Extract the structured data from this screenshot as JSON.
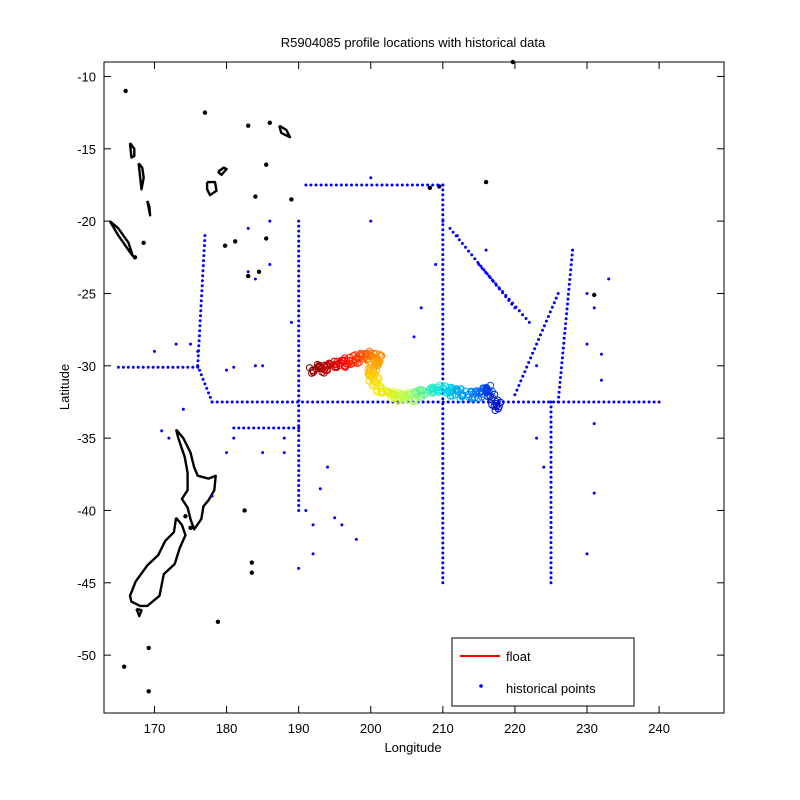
{
  "chart_data": {
    "type": "scatter",
    "title": "R5904085 profile locations with historical data",
    "xlabel": "Longitude",
    "ylabel": "Latitude",
    "xlim": [
      163,
      249
    ],
    "ylim": [
      -54,
      -9
    ],
    "xticks": [
      170,
      180,
      190,
      200,
      210,
      220,
      230,
      240
    ],
    "yticks": [
      -10,
      -15,
      -20,
      -25,
      -30,
      -35,
      -40,
      -45,
      -50
    ],
    "grid": false,
    "legend_position": "bottom-right",
    "legend": [
      {
        "label": "float",
        "color": "#ff0000",
        "marker": "line"
      },
      {
        "label": "historical points",
        "color": "#0000ff",
        "marker": "dot"
      }
    ],
    "colors": {
      "historical": "#0000ff",
      "coastline": "#000000",
      "float_line": "#ff0000"
    },
    "float_track": [
      [
        192,
        -30.3
      ],
      [
        194,
        -30.1
      ],
      [
        196,
        -29.8
      ],
      [
        198,
        -29.6
      ],
      [
        200,
        -29.3
      ],
      [
        201,
        -29.2
      ],
      [
        200,
        -30.6
      ],
      [
        201,
        -31.5
      ],
      [
        203,
        -32.0
      ],
      [
        205,
        -32.3
      ],
      [
        207,
        -31.9
      ],
      [
        209,
        -31.6
      ],
      [
        211,
        -31.7
      ],
      [
        213,
        -32.0
      ],
      [
        214,
        -32.1
      ],
      [
        216,
        -31.6
      ],
      [
        217,
        -32.2
      ],
      [
        217.5,
        -33.0
      ]
    ],
    "historical_lines": [
      {
        "from": [
          191,
          -17.5
        ],
        "to": [
          210,
          -17.5
        ]
      },
      {
        "from": [
          210,
          -17.5
        ],
        "to": [
          210,
          -45
        ]
      },
      {
        "from": [
          190,
          -20
        ],
        "to": [
          190,
          -40
        ]
      },
      {
        "from": [
          178,
          -32.5
        ],
        "to": [
          240,
          -32.5
        ]
      },
      {
        "from": [
          165,
          -30.1
        ],
        "to": [
          176,
          -30.1
        ]
      },
      {
        "from": [
          176,
          -30
        ],
        "to": [
          178,
          -32.5
        ]
      },
      {
        "from": [
          177,
          -21
        ],
        "to": [
          176,
          -30
        ]
      },
      {
        "from": [
          225,
          -32.5
        ],
        "to": [
          225,
          -45
        ]
      },
      {
        "from": [
          228,
          -22
        ],
        "to": [
          226,
          -32.5
        ]
      },
      {
        "from": [
          181,
          -34.3
        ],
        "to": [
          190,
          -34.3
        ]
      },
      {
        "from": [
          211,
          -20.5
        ],
        "to": [
          220,
          -26
        ]
      },
      {
        "from": [
          226,
          -25
        ],
        "to": [
          220,
          -32
        ]
      },
      {
        "from": [
          215,
          -23
        ],
        "to": [
          222,
          -27
        ]
      }
    ],
    "historical_scattered": [
      [
        173,
        -28.5
      ],
      [
        175,
        -28.5
      ],
      [
        176,
        -29
      ],
      [
        180,
        -30.3
      ],
      [
        181,
        -30.1
      ],
      [
        183,
        -23.5
      ],
      [
        184,
        -24
      ],
      [
        186,
        -23
      ],
      [
        183,
        -20.5
      ],
      [
        186,
        -20
      ],
      [
        189,
        -27
      ],
      [
        191,
        -40
      ],
      [
        192,
        -41
      ],
      [
        190,
        -44
      ],
      [
        192,
        -43
      ],
      [
        196,
        -41
      ],
      [
        198,
        -42
      ],
      [
        193,
        -38.5
      ],
      [
        194,
        -37
      ],
      [
        195,
        -40.5
      ],
      [
        209,
        -23
      ],
      [
        207,
        -26
      ],
      [
        206,
        -28
      ],
      [
        210,
        -20
      ],
      [
        200,
        -17
      ],
      [
        200,
        -20
      ],
      [
        216,
        -22
      ],
      [
        212,
        -21
      ],
      [
        230,
        -25
      ],
      [
        231,
        -26
      ],
      [
        232,
        -29.2
      ],
      [
        230,
        -28.5
      ],
      [
        233,
        -24
      ],
      [
        232,
        -31
      ],
      [
        231,
        -34
      ],
      [
        231,
        -38.8
      ],
      [
        230,
        -43
      ],
      [
        223,
        -30
      ],
      [
        223,
        -35
      ],
      [
        224,
        -37
      ],
      [
        171,
        -34.5
      ],
      [
        170,
        -29
      ],
      [
        172,
        -35
      ],
      [
        174,
        -33
      ],
      [
        178,
        -39
      ],
      [
        180,
        -36
      ],
      [
        181,
        -35
      ],
      [
        185,
        -36
      ],
      [
        188,
        -36
      ],
      [
        188,
        -35
      ],
      [
        185,
        -30
      ],
      [
        184,
        -30
      ]
    ],
    "coastlines": [
      {
        "name": "New Zealand North Island",
        "points": [
          [
            173,
            -34.4
          ],
          [
            174,
            -35
          ],
          [
            175,
            -36
          ],
          [
            175.5,
            -37
          ],
          [
            176,
            -37.6
          ],
          [
            177.5,
            -37.8
          ],
          [
            178.5,
            -37.6
          ],
          [
            178.3,
            -38.6
          ],
          [
            177.5,
            -39.3
          ],
          [
            176.8,
            -39.7
          ],
          [
            176.5,
            -40.6
          ],
          [
            175.5,
            -41.3
          ],
          [
            175,
            -40.6
          ],
          [
            174.6,
            -39.8
          ],
          [
            173.8,
            -39.2
          ],
          [
            174.6,
            -38.6
          ],
          [
            174.6,
            -37.4
          ],
          [
            174.2,
            -36.3
          ],
          [
            173.3,
            -35
          ],
          [
            173,
            -34.4
          ]
        ]
      },
      {
        "name": "New Zealand South Island",
        "points": [
          [
            173,
            -40.5
          ],
          [
            172.7,
            -41.5
          ],
          [
            171.5,
            -42.1
          ],
          [
            170.5,
            -43.1
          ],
          [
            169,
            -43.8
          ],
          [
            167.4,
            -44.9
          ],
          [
            166.6,
            -45.9
          ],
          [
            166.8,
            -46.3
          ],
          [
            168,
            -46.6
          ],
          [
            169,
            -46.6
          ],
          [
            170.7,
            -45.9
          ],
          [
            171.3,
            -44.4
          ],
          [
            172.8,
            -43.7
          ],
          [
            173.5,
            -42.6
          ],
          [
            174.3,
            -41.7
          ],
          [
            173.8,
            -41
          ],
          [
            173,
            -40.5
          ]
        ]
      },
      {
        "name": "New Caledonia",
        "points": [
          [
            163.8,
            -20
          ],
          [
            165,
            -21
          ],
          [
            166.4,
            -22
          ],
          [
            167,
            -22.4
          ],
          [
            166.4,
            -21.5
          ],
          [
            165,
            -20.5
          ],
          [
            163.8,
            -20
          ]
        ]
      },
      {
        "name": "Stewart Island",
        "points": [
          [
            167.5,
            -46.8
          ],
          [
            168.2,
            -46.9
          ],
          [
            167.9,
            -47.3
          ],
          [
            167.5,
            -46.8
          ]
        ]
      },
      {
        "name": "Fiji Viti Levu",
        "points": [
          [
            177.3,
            -17.3
          ],
          [
            178.4,
            -17.3
          ],
          [
            178.6,
            -17.9
          ],
          [
            177.7,
            -18.2
          ],
          [
            177.3,
            -17.8
          ],
          [
            177.3,
            -17.3
          ]
        ]
      },
      {
        "name": "Fiji Vanua Levu",
        "points": [
          [
            178.8,
            -16.6
          ],
          [
            179.6,
            -16.3
          ],
          [
            180,
            -16.4
          ],
          [
            179.3,
            -16.8
          ],
          [
            178.8,
            -16.6
          ]
        ]
      },
      {
        "name": "Vanuatu north",
        "points": [
          [
            166.6,
            -14.6
          ],
          [
            167.2,
            -15
          ],
          [
            167.2,
            -15.5
          ],
          [
            166.8,
            -15.6
          ],
          [
            166.6,
            -14.6
          ]
        ]
      },
      {
        "name": "Vanuatu central",
        "points": [
          [
            167.8,
            -16
          ],
          [
            168.3,
            -16.3
          ],
          [
            168.5,
            -17
          ],
          [
            168.2,
            -17.8
          ],
          [
            167.8,
            -16
          ]
        ]
      },
      {
        "name": "Vanuatu south",
        "points": [
          [
            169,
            -18.6
          ],
          [
            169.3,
            -19
          ],
          [
            169.4,
            -19.6
          ],
          [
            169,
            -18.6
          ]
        ]
      },
      {
        "name": "Samoa",
        "points": [
          [
            187.3,
            -13.4
          ],
          [
            188.3,
            -13.7
          ],
          [
            188.8,
            -14.2
          ],
          [
            187.6,
            -13.9
          ],
          [
            187.3,
            -13.4
          ]
        ]
      }
    ],
    "islands": [
      [
        166,
        -11
      ],
      [
        177,
        -12.5
      ],
      [
        183,
        -13.4
      ],
      [
        186,
        -13.2
      ],
      [
        185.5,
        -16.1
      ],
      [
        184,
        -18.3
      ],
      [
        185.5,
        -21.2
      ],
      [
        184.5,
        -23.5
      ],
      [
        183,
        -23.8
      ],
      [
        189,
        -18.5
      ],
      [
        216,
        -17.3
      ],
      [
        219.7,
        -9
      ],
      [
        231,
        -25.1
      ],
      [
        167.3,
        -22.5
      ],
      [
        168.5,
        -21.5
      ],
      [
        179.8,
        -21.7
      ],
      [
        181.2,
        -21.4
      ],
      [
        183.5,
        -43.6
      ],
      [
        183.5,
        -44.3
      ],
      [
        178.8,
        -47.7
      ],
      [
        165.8,
        -50.8
      ],
      [
        169.2,
        -52.5
      ],
      [
        169.2,
        -49.5
      ],
      [
        174.3,
        -40.4
      ],
      [
        175,
        -41.2
      ],
      [
        182.5,
        -40
      ],
      [
        208.2,
        -17.7
      ],
      [
        209.5,
        -17.6
      ]
    ]
  }
}
